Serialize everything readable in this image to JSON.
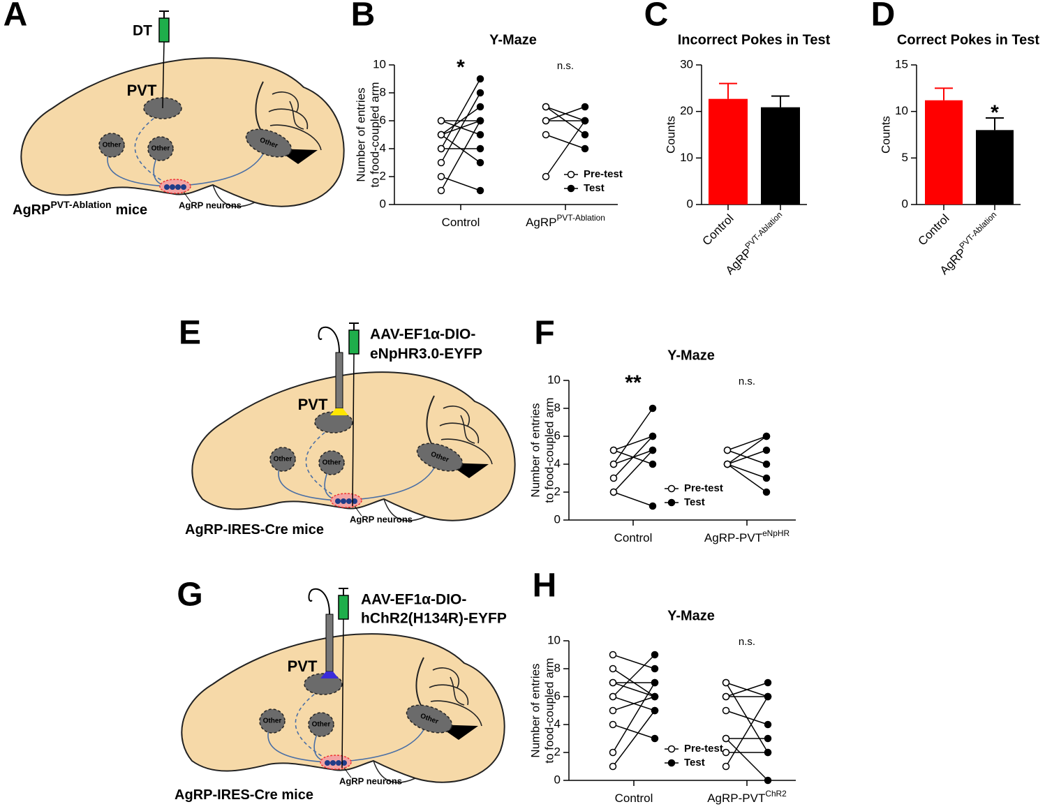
{
  "panel_labels": [
    "A",
    "B",
    "C",
    "D",
    "E",
    "F",
    "G",
    "H"
  ],
  "diagrams": [
    {
      "injection": [
        "DT"
      ],
      "region": "PVT",
      "others": [
        "Other",
        "Other",
        "Other"
      ],
      "neurons": "AgRP neurons",
      "mouse": {
        "text": "AgRP",
        "sup": "PVT-Ablation",
        "tail": "mice"
      }
    },
    {
      "injection": [
        "AAV-EF1α-DIO-",
        "eNpHR3.0-EYFP"
      ],
      "region": "PVT",
      "others": [
        "Other",
        "Other",
        "Other"
      ],
      "neurons": "AgRP neurons",
      "mouse": {
        "text": "AgRP-IRES-Cre mice"
      }
    },
    {
      "injection": [
        "AAV-EF1α-DIO-",
        "hChR2(H134R)-EYFP"
      ],
      "region": "PVT",
      "others": [
        "Other",
        "Other",
        "Other"
      ],
      "neurons": "AgRP neurons",
      "mouse": {
        "text": "AgRP-IRES-Cre mice"
      }
    }
  ],
  "chart_data": [
    {
      "type": "paired",
      "title": "Y-Maze",
      "y_label": [
        "Number of entries",
        "to food-coupled arm"
      ],
      "categories": [
        {
          "text": "Control"
        },
        {
          "text": "AgRP",
          "sup": "PVT-Ablation"
        }
      ],
      "annotations": [
        "*",
        "n.s."
      ],
      "series": [
        {
          "name": "Pre-test",
          "marker": "open",
          "values": [
            [
              1,
              2,
              3,
              4,
              4,
              5,
              5,
              5,
              6,
              6
            ],
            [
              7,
              7,
              6,
              6,
              5,
              2
            ]
          ]
        },
        {
          "name": "Test",
          "marker": "filled",
          "values": [
            [
              6,
              1,
              8,
              9,
              4,
              7,
              3,
              6,
              5,
              6
            ],
            [
              6,
              5,
              6,
              7,
              4,
              6
            ]
          ]
        }
      ],
      "ylim": [
        0,
        10
      ],
      "yticks": [
        0,
        2,
        4,
        6,
        8,
        10
      ]
    },
    {
      "type": "bar",
      "title": "Incorrect Pokes in Test",
      "y_label": [
        "Counts"
      ],
      "categories": [
        {
          "text": "Control"
        },
        {
          "text": "AgRP",
          "sup": "PVT-Ablation"
        }
      ],
      "values": [
        22.7,
        20.9
      ],
      "errors": [
        3.3,
        2.4
      ],
      "colors": [
        "#ff0000",
        "#000000"
      ],
      "annotations": [
        null,
        null
      ],
      "ylim": [
        0,
        30
      ],
      "yticks": [
        0,
        10,
        20,
        30
      ]
    },
    {
      "type": "bar",
      "title": "Correct Pokes in Test",
      "y_label": [
        "Counts"
      ],
      "categories": [
        {
          "text": "Control"
        },
        {
          "text": "AgRP",
          "sup": "PVT-Ablation"
        }
      ],
      "values": [
        11.2,
        8.0
      ],
      "errors": [
        1.3,
        1.3
      ],
      "colors": [
        "#ff0000",
        "#000000"
      ],
      "annotations": [
        null,
        "*"
      ],
      "ylim": [
        0,
        15
      ],
      "yticks": [
        0,
        5,
        10,
        15
      ]
    },
    {
      "type": "paired",
      "title": "Y-Maze",
      "y_label": [
        "Number of entries",
        "to food-coupled arm"
      ],
      "categories": [
        {
          "text": "Control"
        },
        {
          "text": "AgRP-PVT",
          "sup": "eNpHR"
        }
      ],
      "annotations": [
        "**",
        "n.s."
      ],
      "series": [
        {
          "name": "Pre-test",
          "marker": "open",
          "values": [
            [
              5,
              5,
              4,
              4,
              3,
              2,
              2
            ],
            [
              5,
              5,
              4,
              4,
              4,
              4
            ]
          ]
        },
        {
          "name": "Test",
          "marker": "filled",
          "values": [
            [
              4,
              6,
              5,
              8,
              6,
              5,
              1
            ],
            [
              6,
              4,
              6,
              5,
              3,
              2
            ]
          ]
        }
      ],
      "ylim": [
        0,
        10
      ],
      "yticks": [
        0,
        2,
        4,
        6,
        8,
        10
      ]
    },
    {
      "type": "paired",
      "title": "Y-Maze",
      "y_label": [
        "Number of entries",
        "to food-coupled arm"
      ],
      "categories": [
        {
          "text": "Control"
        },
        {
          "text": "AgRP-PVT",
          "sup": "ChR2"
        }
      ],
      "annotations": [
        null,
        "n.s."
      ],
      "series": [
        {
          "name": "Pre-test",
          "marker": "open",
          "values": [
            [
              9,
              8,
              7,
              6,
              6,
              5,
              4,
              2,
              1,
              7
            ],
            [
              7,
              7,
              6,
              6,
              5,
              3,
              3,
              2,
              1
            ]
          ]
        },
        {
          "name": "Test",
          "marker": "filled",
          "values": [
            [
              8,
              6,
              7,
              9,
              5,
              6,
              3,
              7,
              5,
              6
            ],
            [
              6,
              2,
              6,
              7,
              4,
              0,
              3,
              2,
              6
            ]
          ]
        }
      ],
      "ylim": [
        0,
        10
      ],
      "yticks": [
        0,
        2,
        4,
        6,
        8,
        10
      ]
    }
  ]
}
